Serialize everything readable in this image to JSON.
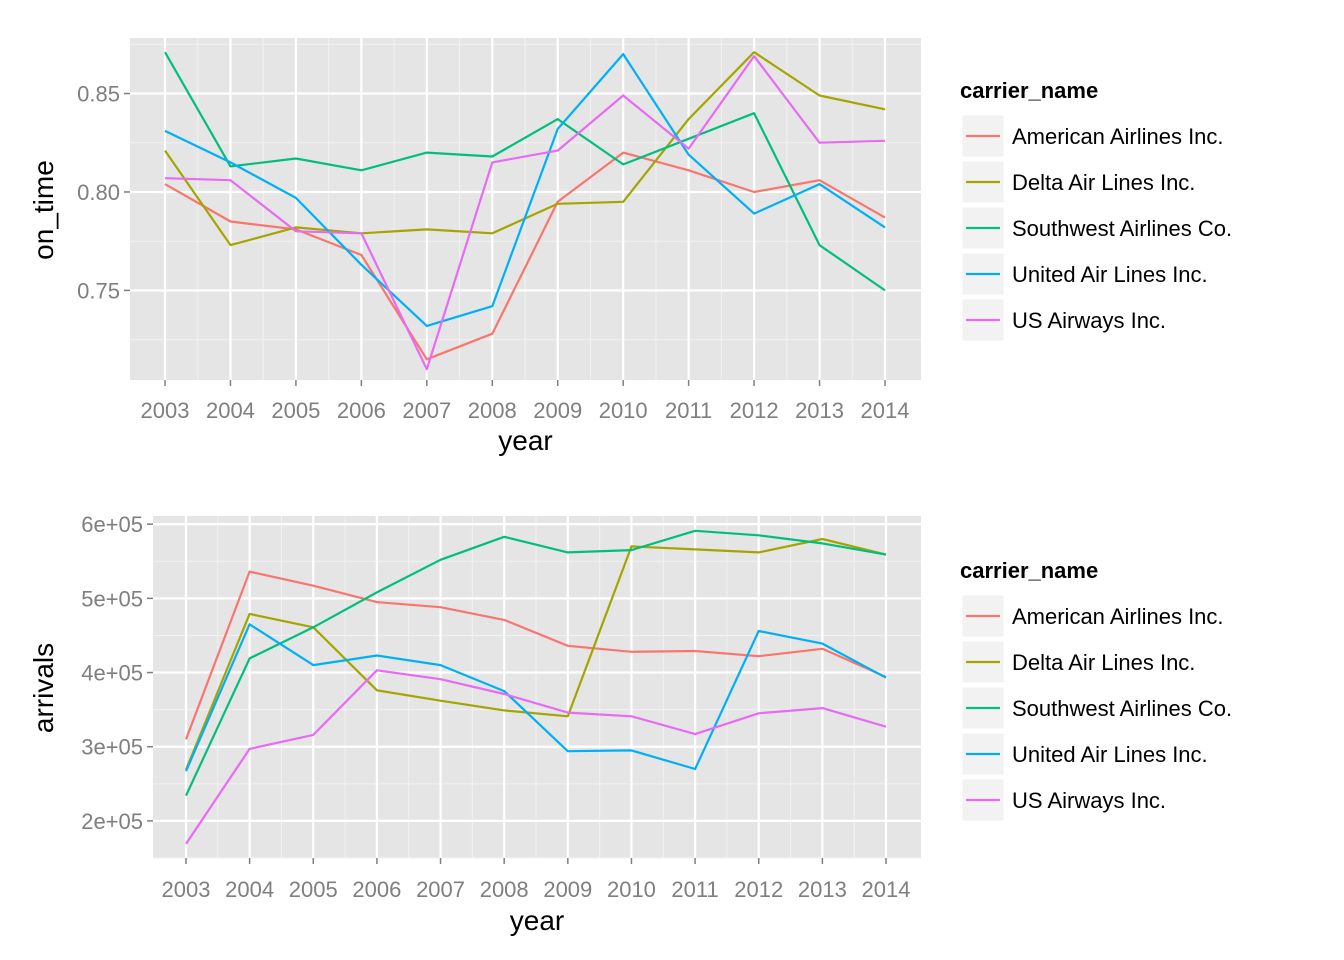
{
  "chart_data": [
    {
      "type": "line",
      "xlabel": "year",
      "ylabel": "on_time",
      "x": [
        2003,
        2004,
        2005,
        2006,
        2007,
        2008,
        2009,
        2010,
        2011,
        2012,
        2013,
        2014
      ],
      "x_tick_labels": [
        "2003",
        "2004",
        "2005",
        "2006",
        "2007",
        "2008",
        "2009",
        "2010",
        "2011",
        "2012",
        "2013",
        "2014"
      ],
      "ylim": [
        0.7045,
        0.8782
      ],
      "y_ticks": [
        0.75,
        0.8,
        0.85
      ],
      "y_tick_labels": [
        "0.75",
        "0.80",
        "0.85"
      ],
      "grid": true,
      "legend": {
        "title": "carrier_name",
        "position": "right"
      },
      "series": [
        {
          "name": "American Airlines Inc.",
          "color": "#F8766D",
          "values": [
            0.804,
            0.785,
            0.781,
            0.768,
            0.715,
            0.728,
            0.795,
            0.82,
            0.811,
            0.8,
            0.806,
            0.787
          ]
        },
        {
          "name": "Delta Air Lines Inc.",
          "color": "#A3A500",
          "values": [
            0.821,
            0.773,
            0.782,
            0.779,
            0.781,
            0.779,
            0.794,
            0.795,
            0.837,
            0.871,
            0.849,
            0.842
          ]
        },
        {
          "name": "Southwest Airlines Co.",
          "color": "#00BF7D",
          "values": [
            0.871,
            0.813,
            0.817,
            0.811,
            0.82,
            0.818,
            0.837,
            0.814,
            0.827,
            0.84,
            0.773,
            0.75
          ]
        },
        {
          "name": "United Air Lines Inc.",
          "color": "#00B0F6",
          "values": [
            0.831,
            0.815,
            0.797,
            0.763,
            0.732,
            0.742,
            0.832,
            0.87,
            0.819,
            0.789,
            0.804,
            0.782
          ]
        },
        {
          "name": "US Airways Inc.",
          "color": "#E76BF3",
          "values": [
            0.807,
            0.806,
            0.78,
            0.779,
            0.71,
            0.815,
            0.821,
            0.849,
            0.822,
            0.869,
            0.825,
            0.826
          ]
        }
      ]
    },
    {
      "type": "line",
      "xlabel": "year",
      "ylabel": "arrivals",
      "x": [
        2003,
        2004,
        2005,
        2006,
        2007,
        2008,
        2009,
        2010,
        2011,
        2012,
        2013,
        2014
      ],
      "x_tick_labels": [
        "2003",
        "2004",
        "2005",
        "2006",
        "2007",
        "2008",
        "2009",
        "2010",
        "2011",
        "2012",
        "2013",
        "2014"
      ],
      "ylim": [
        150000,
        611000
      ],
      "y_ticks": [
        200000,
        300000,
        400000,
        500000,
        600000
      ],
      "y_tick_labels": [
        "2e+05",
        "3e+05",
        "4e+05",
        "5e+05",
        "6e+05"
      ],
      "grid": true,
      "legend": {
        "title": "carrier_name",
        "position": "right"
      },
      "series": [
        {
          "name": "American Airlines Inc.",
          "color": "#F8766D",
          "values": [
            310000,
            536000,
            517000,
            495000,
            488000,
            471000,
            436000,
            428000,
            429000,
            422000,
            432000,
            394000
          ]
        },
        {
          "name": "Delta Air Lines Inc.",
          "color": "#A3A500",
          "values": [
            269000,
            479000,
            461000,
            376000,
            362000,
            349000,
            341000,
            570000,
            566000,
            562000,
            580000,
            559000
          ]
        },
        {
          "name": "Southwest Airlines Co.",
          "color": "#00BF7D",
          "values": [
            234000,
            419000,
            461000,
            508000,
            552000,
            583000,
            562000,
            565000,
            591000,
            585000,
            574000,
            559000
          ]
        },
        {
          "name": "United Air Lines Inc.",
          "color": "#00B0F6",
          "values": [
            267000,
            465000,
            410000,
            423000,
            410000,
            375000,
            294000,
            295000,
            270000,
            456000,
            439000,
            393000
          ]
        },
        {
          "name": "US Airways Inc.",
          "color": "#E76BF3",
          "values": [
            169000,
            297000,
            316000,
            403000,
            391000,
            371000,
            346000,
            341000,
            317000,
            345000,
            352000,
            327000
          ]
        }
      ]
    }
  ]
}
